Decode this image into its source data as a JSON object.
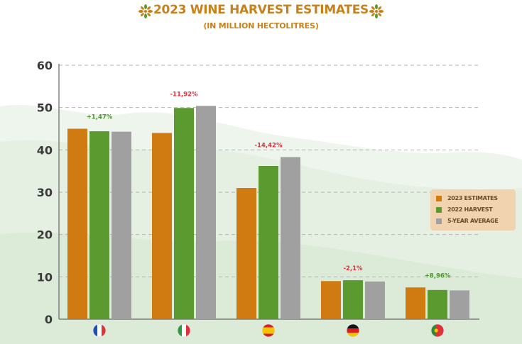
{
  "header": {
    "title": "2023 WINE HARVEST  ESTIMATES",
    "subtitle": "(IN MILLION HECTOLITRES)"
  },
  "colors": {
    "accent": "#c8801a",
    "estimates": "#d07b12",
    "harvest": "#5a9a2e",
    "average": "#a0a0a0",
    "positive_change": "#4a9a28",
    "negative_change": "#e0303a"
  },
  "legend": {
    "items": [
      {
        "label": "2023 ESTIMATES",
        "color": "#d07b12"
      },
      {
        "label": "2022 HARVEST",
        "color": "#5a9a2e"
      },
      {
        "label": "5-YEAR AVERAGE",
        "color": "#a0a0a0"
      }
    ]
  },
  "chart_data": {
    "type": "bar",
    "title": "2023 WINE HARVEST  ESTIMATES",
    "subtitle": "(IN MILLION HECTOLITRES)",
    "categories": [
      "france-flag-icon",
      "italy-flag-icon",
      "spain-flag-icon",
      "germany-flag-icon",
      "portugal-flag-icon"
    ],
    "series": [
      {
        "name": "2023 ESTIMATES",
        "values": [
          45.0,
          44.0,
          31.0,
          9.0,
          7.5
        ]
      },
      {
        "name": "2022 HARVEST",
        "values": [
          44.4,
          49.9,
          36.2,
          9.2,
          6.9
        ]
      },
      {
        "name": "5-YEAR AVERAGE",
        "values": [
          44.3,
          50.4,
          38.3,
          8.9,
          6.8
        ]
      }
    ],
    "changes": [
      "+1,47%",
      "-11,92%",
      "-14,42%",
      "-2,1%",
      "+8,96%"
    ],
    "change_sign": [
      "positive",
      "negative",
      "negative",
      "negative",
      "positive"
    ],
    "ylim": [
      0,
      60
    ],
    "yticks": [
      0,
      10,
      20,
      30,
      40,
      50,
      60
    ],
    "grid": true,
    "legend_position": "right"
  }
}
